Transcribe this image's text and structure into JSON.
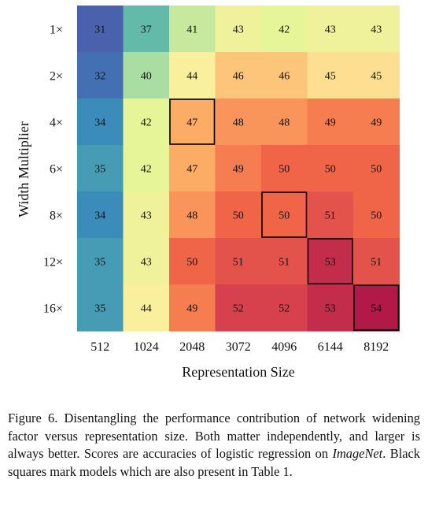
{
  "chart_data": {
    "type": "heatmap",
    "title": "",
    "xlabel": "Representation Size",
    "ylabel": "Width Multiplier",
    "x_categories": [
      "512",
      "1024",
      "2048",
      "3072",
      "4096",
      "6144",
      "8192"
    ],
    "y_categories": [
      "1×",
      "2×",
      "4×",
      "6×",
      "8×",
      "12×",
      "16×"
    ],
    "values": [
      [
        31,
        37,
        41,
        43,
        42,
        43,
        43
      ],
      [
        32,
        40,
        44,
        46,
        46,
        45,
        45
      ],
      [
        34,
        42,
        47,
        48,
        48,
        49,
        49
      ],
      [
        35,
        42,
        47,
        49,
        50,
        50,
        50
      ],
      [
        34,
        43,
        48,
        50,
        50,
        51,
        50
      ],
      [
        35,
        43,
        50,
        51,
        51,
        53,
        51
      ],
      [
        35,
        44,
        49,
        52,
        52,
        53,
        54
      ]
    ],
    "value_range": [
      31,
      54
    ],
    "colormap": "Spectral (reversed)",
    "highlighted_cells": [
      [
        2,
        2
      ],
      [
        4,
        4
      ],
      [
        5,
        5
      ],
      [
        6,
        6
      ]
    ],
    "highlight_color": "#000000"
  },
  "caption": {
    "label": "Figure 6.",
    "text_before": "Disentangling the performance contribution of network widening factor versus representation size. Both matter independently, and larger is always better. Scores are accuracies of logistic regression on ",
    "emphasis": "ImageNet",
    "text_after": ". Black squares mark models which are also present in Table 1."
  }
}
